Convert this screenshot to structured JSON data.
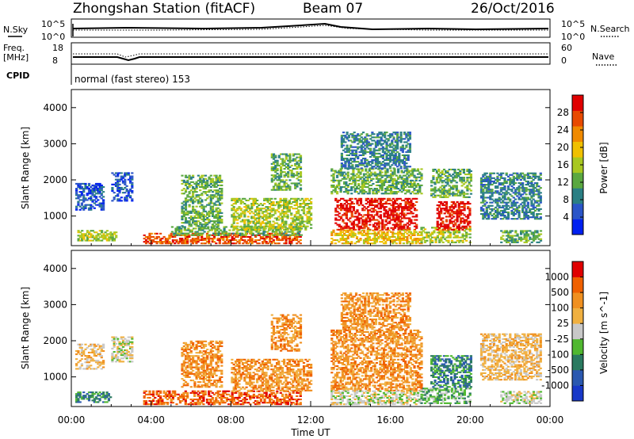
{
  "header": {
    "station": "Zhongshan Station (fitACF)",
    "beam": "Beam 07",
    "date": "26/Oct/2016"
  },
  "noise_panel": {
    "left_label": "N.Sky",
    "left_ticks": [
      "10^5",
      "10^0"
    ],
    "right_label": "N.Search",
    "right_ticks": [
      "10^5",
      "10^0"
    ]
  },
  "freq_panel": {
    "left_label_1": "Freq.",
    "left_label_2": "[MHz]",
    "left_ticks": [
      "18",
      "8"
    ],
    "right_label": "Nave",
    "right_ticks": [
      "60",
      "0"
    ],
    "cpid_label": "CPID"
  },
  "mode_text": "normal (fast stereo) 153",
  "chart_data": [
    {
      "type": "heatmap",
      "name": "power",
      "ylabel": "Slant Range [km]",
      "ylim": [
        180,
        4500
      ],
      "yticks": [
        1000,
        2000,
        3000,
        4000
      ],
      "xlim": [
        0,
        24
      ],
      "colorbar": {
        "label": "Power [dB]",
        "range": [
          0,
          32
        ],
        "ticks": [
          "4",
          "8",
          "12",
          "16",
          "20",
          "24",
          "28"
        ],
        "colors": [
          "#0020f0",
          "#2a55c8",
          "#2a7f84",
          "#5aa840",
          "#a8c820",
          "#f0c000",
          "#f08a00",
          "#e84a00",
          "#e00000"
        ]
      },
      "regions": [
        {
          "t0": 0.2,
          "t1": 1.6,
          "r0": 1150,
          "r1": 1900,
          "level": 1
        },
        {
          "t0": 0.3,
          "t1": 2.2,
          "r0": 300,
          "r1": 600,
          "level": 4
        },
        {
          "t0": 2.0,
          "t1": 3.0,
          "r0": 1400,
          "r1": 2200,
          "level": 1
        },
        {
          "t0": 3.6,
          "t1": 11.5,
          "r0": 220,
          "r1": 500,
          "level": 7
        },
        {
          "t0": 5.0,
          "t1": 11.5,
          "r0": 450,
          "r1": 700,
          "level": 3
        },
        {
          "t0": 5.5,
          "t1": 7.5,
          "r0": 700,
          "r1": 2100,
          "level": 3
        },
        {
          "t0": 8.0,
          "t1": 12.0,
          "r0": 600,
          "r1": 1500,
          "level": 4
        },
        {
          "t0": 10.0,
          "t1": 11.5,
          "r0": 1700,
          "r1": 2700,
          "level": 3
        },
        {
          "t0": 13.0,
          "t1": 17.5,
          "r0": 1600,
          "r1": 2300,
          "level": 3
        },
        {
          "t0": 13.2,
          "t1": 17.3,
          "r0": 600,
          "r1": 1500,
          "level": 8
        },
        {
          "t0": 13.0,
          "t1": 17.5,
          "r0": 220,
          "r1": 600,
          "level": 5
        },
        {
          "t0": 13.5,
          "t1": 17.0,
          "r0": 2300,
          "r1": 3300,
          "level": 2
        },
        {
          "t0": 17.5,
          "t1": 20.0,
          "r0": 250,
          "r1": 700,
          "level": 4
        },
        {
          "t0": 18.3,
          "t1": 20.0,
          "r0": 600,
          "r1": 1400,
          "level": 8
        },
        {
          "t0": 18.0,
          "t1": 20.0,
          "r0": 1500,
          "r1": 2300,
          "level": 3
        },
        {
          "t0": 20.5,
          "t1": 23.5,
          "r0": 900,
          "r1": 2200,
          "level": 2
        },
        {
          "t0": 21.5,
          "t1": 23.5,
          "r0": 250,
          "r1": 600,
          "level": 3
        }
      ]
    },
    {
      "type": "heatmap",
      "name": "velocity",
      "ylabel": "Slant Range [km]",
      "ylim": [
        180,
        4500
      ],
      "yticks": [
        1000,
        2000,
        3000,
        4000
      ],
      "xlabel": "Time UT",
      "xlim": [
        0,
        24
      ],
      "xticks": [
        "00:00",
        "04:00",
        "08:00",
        "12:00",
        "16:00",
        "20:00",
        "00:00"
      ],
      "colorbar": {
        "label": "Velocity [m s^-1]",
        "ticks": [
          "1000",
          "500",
          "100",
          "25",
          "-25",
          "-100",
          "-500",
          "-1000"
        ],
        "colors": [
          "#1838c8",
          "#2a58b0",
          "#2a7a60",
          "#50b830",
          "#c8c8c8",
          "#f0b040",
          "#f09020",
          "#f06000",
          "#e00000"
        ]
      },
      "regions": [
        {
          "t0": 0.2,
          "t1": 1.6,
          "r0": 1200,
          "r1": 1900,
          "level": 5
        },
        {
          "t0": 0.2,
          "t1": 2.0,
          "r0": 280,
          "r1": 560,
          "level": 2
        },
        {
          "t0": 2.0,
          "t1": 3.0,
          "r0": 1400,
          "r1": 2100,
          "level": 4
        },
        {
          "t0": 3.6,
          "t1": 11.5,
          "r0": 220,
          "r1": 600,
          "level": 7
        },
        {
          "t0": 5.5,
          "t1": 7.5,
          "r0": 700,
          "r1": 2000,
          "level": 6
        },
        {
          "t0": 8.0,
          "t1": 12.0,
          "r0": 600,
          "r1": 1500,
          "level": 6
        },
        {
          "t0": 10.0,
          "t1": 11.5,
          "r0": 1700,
          "r1": 2700,
          "level": 6
        },
        {
          "t0": 13.0,
          "t1": 17.5,
          "r0": 600,
          "r1": 2300,
          "level": 6
        },
        {
          "t0": 13.0,
          "t1": 17.5,
          "r0": 220,
          "r1": 600,
          "level": 4
        },
        {
          "t0": 13.5,
          "t1": 17.0,
          "r0": 2300,
          "r1": 3300,
          "level": 6
        },
        {
          "t0": 17.5,
          "t1": 20.0,
          "r0": 250,
          "r1": 700,
          "level": 3
        },
        {
          "t0": 18.0,
          "t1": 20.0,
          "r0": 700,
          "r1": 1600,
          "level": 2
        },
        {
          "t0": 20.5,
          "t1": 23.5,
          "r0": 900,
          "r1": 2200,
          "level": 5
        },
        {
          "t0": 21.5,
          "t1": 23.5,
          "r0": 250,
          "r1": 600,
          "level": 4
        }
      ]
    }
  ]
}
